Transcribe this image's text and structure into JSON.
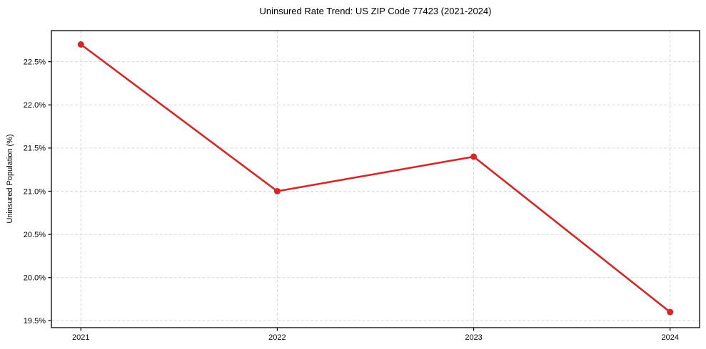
{
  "chart_data": {
    "type": "line",
    "title": "Uninsured Rate Trend: US ZIP Code 77423 (2021-2024)",
    "xlabel": "",
    "ylabel": "Uninsured Population (%)",
    "x": [
      2021,
      2022,
      2023,
      2024
    ],
    "x_tick_labels": [
      "2021",
      "2022",
      "2023",
      "2024"
    ],
    "yticks": [
      19.5,
      20.0,
      20.5,
      21.0,
      21.5,
      22.0,
      22.5
    ],
    "ytick_labels": [
      "19.5%",
      "20.0%",
      "20.5%",
      "21.0%",
      "21.5%",
      "22.0%",
      "22.5%"
    ],
    "xlim": [
      2020.85,
      2024.15
    ],
    "ylim": [
      19.42,
      22.86
    ],
    "grid": true,
    "grid_style": "dashed",
    "legend_position": "none",
    "series": [
      {
        "name": "uninsured_rate",
        "x": [
          2021,
          2022,
          2023,
          2024
        ],
        "values": [
          22.7,
          21.0,
          21.4,
          19.6
        ],
        "color": "#d62728",
        "marker": "circle"
      }
    ],
    "colors": {
      "line": "#d62728",
      "grid": "#d8d8d8",
      "frame": "#000000",
      "text": "#000000"
    }
  }
}
